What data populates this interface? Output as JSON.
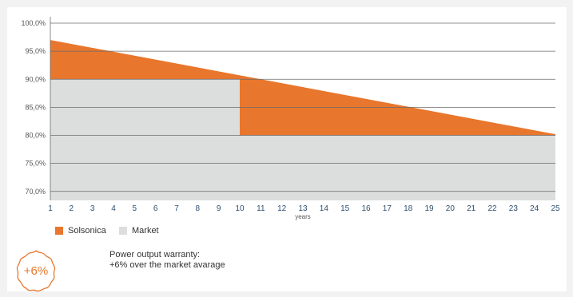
{
  "chart_data": {
    "type": "area",
    "x_unit_label": "years",
    "x": [
      1,
      2,
      3,
      4,
      5,
      6,
      7,
      8,
      9,
      10,
      11,
      12,
      13,
      14,
      15,
      16,
      17,
      18,
      19,
      20,
      21,
      22,
      23,
      24,
      25
    ],
    "y_ticks": [
      "100,0%",
      "95,0%",
      "90,0%",
      "85,0%",
      "80,0%",
      "75,0%",
      "70,0%"
    ],
    "ylim": [
      68.4,
      100
    ],
    "grid": true,
    "series": [
      {
        "name": "Solsonica",
        "color": "#e8762d",
        "points": [
          [
            1,
            97.0
          ],
          [
            25,
            80.2
          ]
        ]
      },
      {
        "name": "Market",
        "color": "#dcdddd",
        "points": [
          [
            1,
            90.0
          ],
          [
            10,
            90.0
          ],
          [
            10,
            80.0
          ],
          [
            25,
            80.0
          ]
        ]
      }
    ],
    "legend_position": "bottom-left"
  },
  "badge": {
    "text": "+6%"
  },
  "warranty": {
    "line1": "Power output warranty:",
    "line2": "+6% over the market avarage"
  }
}
